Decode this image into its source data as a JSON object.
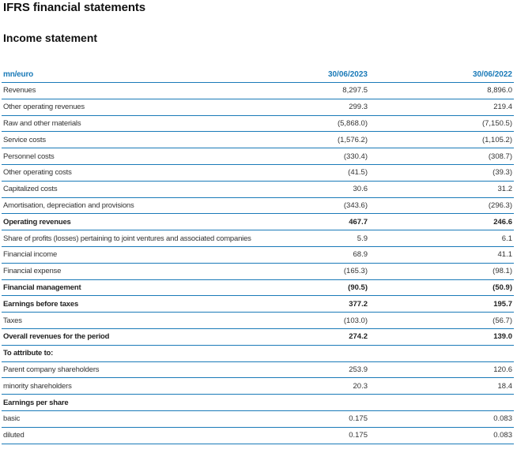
{
  "page_title": "IFRS financial statements",
  "section_title": "Income statement",
  "table": {
    "unit_label": "mn/euro",
    "col1_header": "30/06/2023",
    "col2_header": "30/06/2022",
    "rows": [
      {
        "label": "Revenues",
        "v1": "8,297.5",
        "v2": "8,896.0",
        "bold": false
      },
      {
        "label": "Other operating revenues",
        "v1": "299.3",
        "v2": "219.4",
        "bold": false
      },
      {
        "label": "Raw and other materials",
        "v1": "(5,868.0)",
        "v2": "(7,150.5)",
        "bold": false
      },
      {
        "label": "Service costs",
        "v1": "(1,576.2)",
        "v2": "(1,105.2)",
        "bold": false
      },
      {
        "label": "Personnel costs",
        "v1": "(330.4)",
        "v2": "(308.7)",
        "bold": false
      },
      {
        "label": "Other operating costs",
        "v1": "(41.5)",
        "v2": "(39.3)",
        "bold": false
      },
      {
        "label": "Capitalized costs",
        "v1": "30.6",
        "v2": "31.2",
        "bold": false
      },
      {
        "label": "Amortisation, depreciation and provisions",
        "v1": "(343.6)",
        "v2": "(296.3)",
        "bold": false
      },
      {
        "label": "Operating revenues",
        "v1": "467.7",
        "v2": "246.6",
        "bold": true
      },
      {
        "label": "Share of profits (losses) pertaining to joint ventures and associated companies",
        "v1": "5.9",
        "v2": "6.1",
        "bold": false
      },
      {
        "label": "Financial income",
        "v1": "68.9",
        "v2": "41.1",
        "bold": false
      },
      {
        "label": "Financial expense",
        "v1": "(165.3)",
        "v2": "(98.1)",
        "bold": false
      },
      {
        "label": "Financial management",
        "v1": "(90.5)",
        "v2": "(50.9)",
        "bold": true
      },
      {
        "label": "Earnings before taxes",
        "v1": "377.2",
        "v2": "195.7",
        "bold": true
      },
      {
        "label": "Taxes",
        "v1": "(103.0)",
        "v2": "(56.7)",
        "bold": false
      },
      {
        "label": "Overall revenues for the period",
        "v1": "274.2",
        "v2": "139.0",
        "bold": true
      },
      {
        "label": "To attribute to:",
        "v1": "",
        "v2": "",
        "bold": true
      },
      {
        "label": "Parent company shareholders",
        "v1": "253.9",
        "v2": "120.6",
        "bold": false
      },
      {
        "label": "minority shareholders",
        "v1": "20.3",
        "v2": "18.4",
        "bold": false
      },
      {
        "label": "Earnings per share",
        "v1": "",
        "v2": "",
        "bold": true
      },
      {
        "label": "basic",
        "v1": "0.175",
        "v2": "0.083",
        "bold": false
      },
      {
        "label": "diluted",
        "v1": "0.175",
        "v2": "0.083",
        "bold": false
      }
    ]
  },
  "colors": {
    "accent": "#1a7ab8"
  }
}
